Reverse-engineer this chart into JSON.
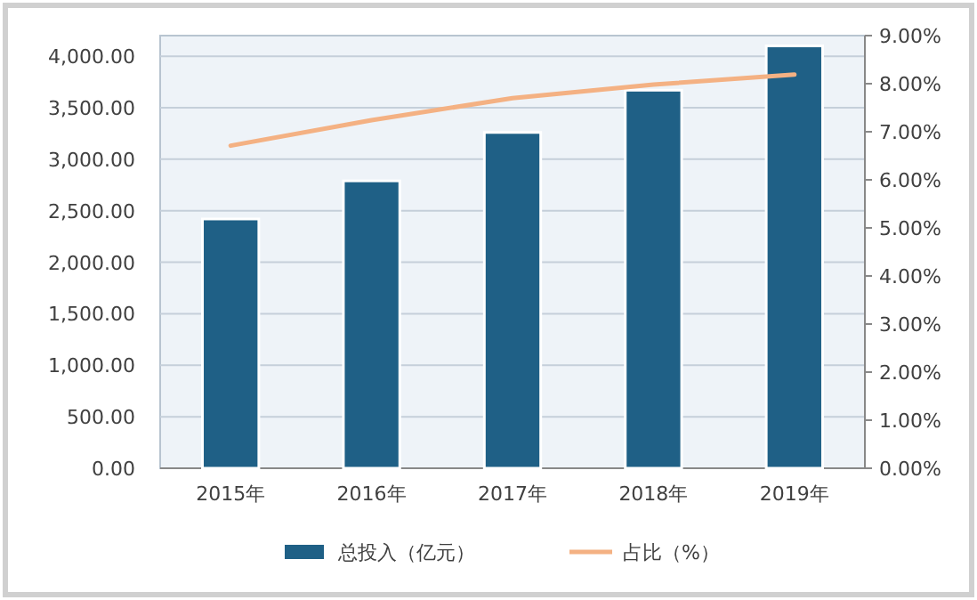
{
  "chart_data": {
    "type": "bar",
    "categories": [
      "2015年",
      "2016年",
      "2017年",
      "2018年",
      "2019年"
    ],
    "series": [
      {
        "name": "总投入（亿元）",
        "color": "#1f6086",
        "values": [
          2420,
          2790,
          3260,
          3670,
          4100
        ]
      },
      {
        "name": "占比（%）",
        "type": "line",
        "axis": "y2",
        "color": "#f4b183",
        "values": [
          6.71,
          7.24,
          7.7,
          7.98,
          8.19
        ]
      }
    ],
    "ylim": [
      0,
      4200
    ],
    "yticks": [
      {
        "value": 0,
        "label": "0.00"
      },
      {
        "value": 500,
        "label": "500.00"
      },
      {
        "value": 1000,
        "label": "1,000.00"
      },
      {
        "value": 1500,
        "label": "1,500.00"
      },
      {
        "value": 2000,
        "label": "2,000.00"
      },
      {
        "value": 2500,
        "label": "2,500.00"
      },
      {
        "value": 3000,
        "label": "3,000.00"
      },
      {
        "value": 3500,
        "label": "3,500.00"
      },
      {
        "value": 4000,
        "label": "4,000.00"
      }
    ],
    "y2lim": [
      0,
      9
    ],
    "y2ticks": [
      {
        "value": 0,
        "label": "0.00%"
      },
      {
        "value": 1,
        "label": "1.00%"
      },
      {
        "value": 2,
        "label": "2.00%"
      },
      {
        "value": 3,
        "label": "3.00%"
      },
      {
        "value": 4,
        "label": "4.00%"
      },
      {
        "value": 5,
        "label": "5.00%"
      },
      {
        "value": 6,
        "label": "6.00%"
      },
      {
        "value": 7,
        "label": "7.00%"
      },
      {
        "value": 8,
        "label": "8.00%"
      },
      {
        "value": 9,
        "label": "9.00%"
      }
    ],
    "grid": "y",
    "legend": "bottom",
    "marker": "none",
    "line_style": "solid"
  }
}
